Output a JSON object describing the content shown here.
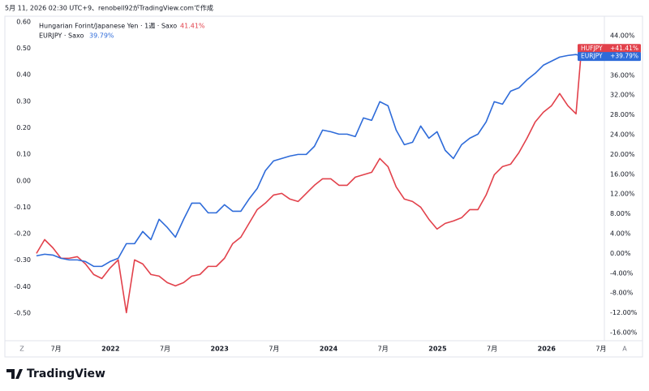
{
  "caption": "5月 11, 2026 02:30 UTC+9、renobell92がTradingView.comで作成",
  "brand": "TradingView",
  "axis_buttons": [
    "Z",
    "A"
  ],
  "chart_data": {
    "type": "line",
    "xlim": [
      2021.313,
      2026.53
    ],
    "xticks": [
      {
        "value": 2021.5,
        "label": "7月"
      },
      2022,
      {
        "value": 2022.5,
        "label": "7月"
      },
      2023,
      {
        "value": 2023.5,
        "label": "7月"
      },
      2024,
      {
        "value": 2024.5,
        "label": "7月"
      },
      2025,
      {
        "value": 2025.5,
        "label": "7月"
      },
      2026,
      {
        "value": 2026.5,
        "label": "7月"
      }
    ],
    "ylim": [
      -0.604,
      0.621
    ],
    "yticks": [
      {
        "value": -0.5,
        "label": "-0.50"
      },
      {
        "value": -0.4,
        "label": "-0.40"
      },
      {
        "value": -0.3,
        "label": "-0.30"
      },
      {
        "value": -0.2,
        "label": "-0.20"
      },
      {
        "value": -0.1,
        "label": "-0.10"
      },
      {
        "value": 0,
        "label": "0.00"
      },
      {
        "value": 0.1,
        "label": "0.10"
      },
      {
        "value": 0.2,
        "label": "0.20"
      },
      {
        "value": 0.3,
        "label": "0.30"
      },
      {
        "value": 0.4,
        "label": "0.40"
      },
      {
        "value": 0.5,
        "label": "0.50"
      },
      {
        "value": 0.6,
        "label": "0.60"
      }
    ],
    "y2lim": [
      -17.64,
      47.93
    ],
    "y2ticks": [
      {
        "value": -16,
        "label": "-16.00%"
      },
      {
        "value": -12,
        "label": "-12.00%"
      },
      {
        "value": -8,
        "label": "-8.00%"
      },
      {
        "value": -4,
        "label": "-4.00%"
      },
      {
        "value": 0,
        "label": "0.00%"
      },
      {
        "value": 4,
        "label": "4.00%"
      },
      {
        "value": 8,
        "label": "8.00%"
      },
      {
        "value": 12,
        "label": "12.00%"
      },
      {
        "value": 16,
        "label": "16.00%"
      },
      {
        "value": 20,
        "label": "20.00%"
      },
      {
        "value": 24,
        "label": "24.00%"
      },
      {
        "value": 28,
        "label": "28.00%"
      },
      {
        "value": 32,
        "label": "32.00%"
      },
      {
        "value": 36,
        "label": "36.00%"
      },
      {
        "value": 40,
        "label": "40.00%"
      },
      {
        "value": 44,
        "label": "44.00%"
      }
    ],
    "grid": false,
    "x": [
      2021.32,
      2021.395,
      2021.47,
      2021.545,
      2021.62,
      2021.695,
      2021.77,
      2021.845,
      2021.92,
      2021.995,
      2022.07,
      2022.145,
      2022.22,
      2022.295,
      2022.37,
      2022.445,
      2022.52,
      2022.595,
      2022.67,
      2022.745,
      2022.82,
      2022.895,
      2022.97,
      2023.045,
      2023.12,
      2023.195,
      2023.27,
      2023.345,
      2023.42,
      2023.495,
      2023.57,
      2023.645,
      2023.72,
      2023.795,
      2023.87,
      2023.945,
      2024.02,
      2024.095,
      2024.17,
      2024.245,
      2024.32,
      2024.395,
      2024.47,
      2024.545,
      2024.62,
      2024.695,
      2024.77,
      2024.845,
      2024.92,
      2024.995,
      2025.07,
      2025.145,
      2025.22,
      2025.295,
      2025.37,
      2025.445,
      2025.52,
      2025.595,
      2025.67,
      2025.745,
      2025.82,
      2025.895,
      2025.97,
      2026.045,
      2026.12,
      2026.195,
      2026.27,
      2026.32
    ],
    "series": [
      {
        "name": "Hungarian Forint/Japanese Yen · 1週 · Saxo",
        "legend_value": "41.41%",
        "tag_name": "HUFJPY",
        "tag_value": "+41.41%",
        "color": "#e2414b",
        "axis": "y2",
        "values": [
          0,
          2.79,
          1.15,
          -0.98,
          -0.98,
          -0.66,
          -2.13,
          -4.26,
          -5.08,
          -2.95,
          -1.31,
          -11.97,
          -1.31,
          -2.13,
          -4.26,
          -4.59,
          -5.9,
          -6.56,
          -5.9,
          -4.59,
          -4.26,
          -2.62,
          -2.62,
          -0.98,
          1.97,
          3.28,
          6.07,
          8.85,
          10.16,
          11.8,
          12.13,
          10.98,
          10.49,
          12.13,
          13.77,
          15.08,
          15.08,
          13.77,
          13.77,
          15.41,
          15.9,
          16.39,
          19.18,
          17.54,
          13.44,
          10.98,
          10.49,
          9.34,
          6.89,
          4.92,
          6.07,
          6.56,
          7.21,
          8.85,
          8.85,
          11.8,
          15.9,
          17.54,
          18.03,
          20.33,
          23.28,
          26.56,
          28.52,
          29.84,
          32.3,
          29.84,
          28.2,
          41.41
        ]
      },
      {
        "name": "EURJPY · Saxo",
        "legend_value": "39.79%",
        "tag_name": "EURJPY",
        "tag_value": "+39.79%",
        "color": "#2e6bd9",
        "axis": "y2",
        "values": [
          -0.49,
          -0.16,
          -0.33,
          -0.98,
          -1.31,
          -1.31,
          -1.64,
          -2.62,
          -2.62,
          -1.64,
          -0.98,
          1.97,
          1.97,
          4.43,
          2.79,
          6.89,
          5.25,
          3.28,
          6.89,
          10.16,
          10.16,
          8.2,
          8.2,
          9.84,
          8.52,
          8.52,
          10.98,
          13.11,
          16.72,
          18.69,
          19.18,
          19.67,
          20.0,
          20.0,
          21.64,
          24.92,
          24.59,
          24.1,
          24.1,
          23.61,
          27.38,
          26.89,
          30.66,
          29.84,
          24.92,
          21.97,
          22.46,
          25.74,
          23.28,
          24.59,
          20.82,
          19.18,
          21.97,
          23.28,
          24.1,
          26.56,
          30.66,
          30.16,
          32.79,
          33.44,
          35.08,
          36.39,
          38.03,
          38.85,
          39.67,
          40.0,
          40.2,
          39.79
        ]
      }
    ]
  }
}
